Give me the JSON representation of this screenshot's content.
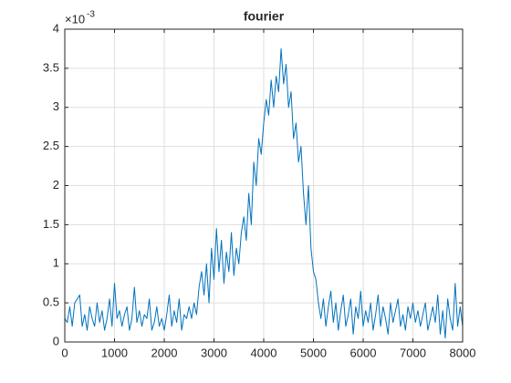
{
  "chart_data": {
    "type": "line",
    "title": "fourier",
    "y_multiplier": {
      "base": "×10",
      "exponent": "-3"
    },
    "color": "#0072bd",
    "grid": true,
    "xlim": [
      0,
      8000
    ],
    "xticks": [
      0,
      1000,
      2000,
      3000,
      4000,
      5000,
      6000,
      7000,
      8000
    ],
    "ylim": [
      0,
      4
    ],
    "yticks": [
      0,
      0.5,
      1,
      1.5,
      2,
      2.5,
      3,
      3.5,
      4
    ],
    "x": [
      0,
      50,
      100,
      150,
      200,
      250,
      300,
      350,
      400,
      450,
      500,
      550,
      600,
      650,
      700,
      750,
      800,
      850,
      900,
      950,
      1000,
      1050,
      1100,
      1150,
      1200,
      1250,
      1300,
      1350,
      1400,
      1450,
      1500,
      1550,
      1600,
      1650,
      1700,
      1750,
      1800,
      1850,
      1900,
      1950,
      2000,
      2050,
      2100,
      2150,
      2200,
      2250,
      2300,
      2350,
      2400,
      2450,
      2500,
      2550,
      2600,
      2650,
      2700,
      2750,
      2800,
      2850,
      2900,
      2950,
      3000,
      3050,
      3100,
      3150,
      3200,
      3250,
      3300,
      3350,
      3400,
      3450,
      3500,
      3550,
      3600,
      3650,
      3700,
      3750,
      3800,
      3850,
      3900,
      3950,
      4000,
      4050,
      4100,
      4150,
      4200,
      4250,
      4300,
      4350,
      4400,
      4450,
      4500,
      4550,
      4600,
      4650,
      4700,
      4750,
      4800,
      4850,
      4900,
      4950,
      5000,
      5050,
      5100,
      5150,
      5200,
      5250,
      5300,
      5350,
      5400,
      5450,
      5500,
      5550,
      5600,
      5650,
      5700,
      5750,
      5800,
      5850,
      5900,
      5950,
      6000,
      6050,
      6100,
      6150,
      6200,
      6250,
      6300,
      6350,
      6400,
      6450,
      6500,
      6550,
      6600,
      6650,
      6700,
      6750,
      6800,
      6850,
      6900,
      6950,
      7000,
      7050,
      7100,
      7150,
      7200,
      7250,
      7300,
      7350,
      7400,
      7450,
      7500,
      7550,
      7600,
      7650,
      7700,
      7750,
      7800,
      7850,
      7900,
      7950,
      8000
    ],
    "values": [
      0.3,
      0.25,
      0.45,
      0.2,
      0.5,
      0.55,
      0.6,
      0.2,
      0.35,
      0.15,
      0.45,
      0.3,
      0.2,
      0.5,
      0.25,
      0.4,
      0.15,
      0.3,
      0.55,
      0.2,
      0.75,
      0.3,
      0.4,
      0.2,
      0.35,
      0.45,
      0.15,
      0.3,
      0.7,
      0.25,
      0.4,
      0.2,
      0.35,
      0.3,
      0.55,
      0.15,
      0.25,
      0.45,
      0.2,
      0.3,
      0.15,
      0.35,
      0.6,
      0.2,
      0.4,
      0.25,
      0.55,
      0.15,
      0.35,
      0.3,
      0.45,
      0.3,
      0.5,
      0.35,
      0.7,
      0.9,
      0.6,
      1.0,
      0.5,
      1.2,
      0.8,
      1.45,
      0.9,
      1.3,
      0.75,
      1.15,
      0.9,
      1.4,
      0.85,
      1.2,
      1.0,
      1.4,
      1.6,
      1.3,
      1.9,
      1.5,
      2.3,
      2.0,
      2.6,
      2.4,
      2.8,
      3.1,
      2.9,
      3.35,
      3.0,
      3.4,
      3.2,
      3.75,
      3.3,
      3.55,
      3.0,
      3.2,
      2.6,
      2.8,
      2.3,
      2.5,
      1.9,
      1.5,
      2.0,
      1.2,
      0.9,
      0.8,
      0.5,
      0.3,
      0.55,
      0.2,
      0.45,
      0.65,
      0.25,
      0.5,
      0.15,
      0.4,
      0.6,
      0.2,
      0.35,
      0.55,
      0.1,
      0.45,
      0.3,
      0.65,
      0.2,
      0.4,
      0.25,
      0.5,
      0.15,
      0.35,
      0.6,
      0.2,
      0.45,
      0.3,
      0.1,
      0.5,
      0.25,
      0.4,
      0.55,
      0.2,
      0.35,
      0.15,
      0.45,
      0.3,
      0.5,
      0.25,
      0.4,
      0.2,
      0.35,
      0.5,
      0.15,
      0.3,
      0.45,
      0.25,
      0.6,
      0.1,
      0.4,
      0.05,
      0.55,
      0.3,
      0.15,
      0.75,
      0.2,
      0.45,
      0.2
    ]
  }
}
